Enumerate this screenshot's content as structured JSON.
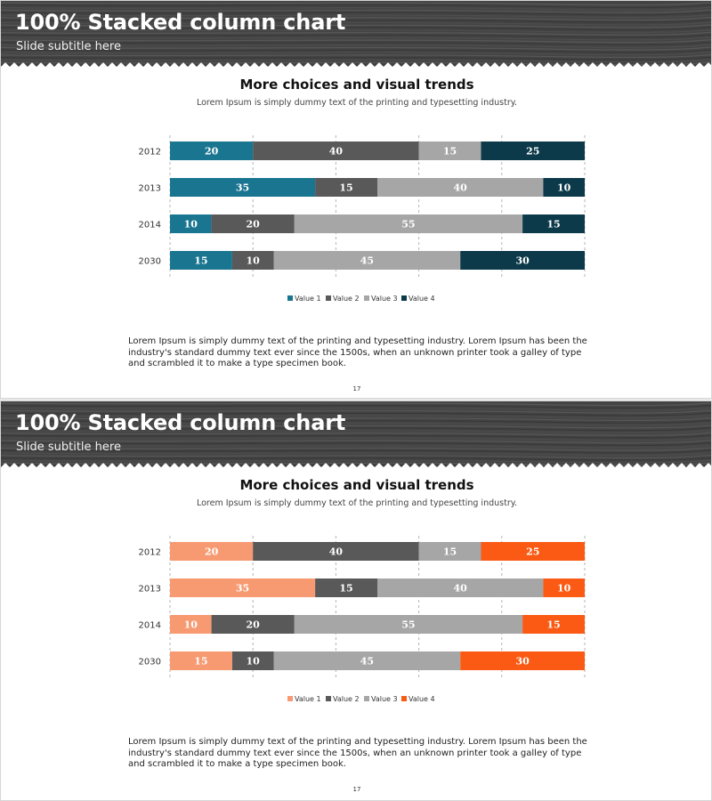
{
  "slides": [
    {
      "header": {
        "title": "100% Stacked column chart",
        "subtitle": "Slide subtitle here"
      },
      "chart_title": "More choices and visual trends",
      "chart_subtitle": "Lorem Ipsum is simply dummy text of the printing and typesetting industry.",
      "body_text": "Lorem Ipsum is simply dummy text of the printing and typesetting industry. Lorem Ipsum has been the industry's standard dummy text ever since the 1500s, when an unknown printer took a galley of type and scrambled it to make a type specimen book.",
      "page_number": "17",
      "colors": [
        "#1a7590",
        "#595959",
        "#a6a6a6",
        "#0c3a4a"
      ]
    },
    {
      "header": {
        "title": "100% Stacked column chart",
        "subtitle": "Slide subtitle here"
      },
      "chart_title": "More choices and visual trends",
      "chart_subtitle": "Lorem Ipsum is simply dummy text of the printing and typesetting industry.",
      "body_text": "Lorem Ipsum is simply dummy text of the printing and typesetting industry. Lorem Ipsum has been the industry's standard dummy text ever since the 1500s, when an unknown printer took a galley of type and scrambled it to make a type specimen book.",
      "page_number": "17",
      "colors": [
        "#f79a72",
        "#595959",
        "#a6a6a6",
        "#fa5a14"
      ]
    }
  ],
  "chart_data": [
    {
      "type": "bar",
      "orientation": "horizontal",
      "stacked": "percent",
      "title": "More choices and visual trends",
      "categories": [
        "2012",
        "2013",
        "2014",
        "2030"
      ],
      "series": [
        {
          "name": "Value 1",
          "values": [
            20,
            35,
            10,
            15
          ]
        },
        {
          "name": "Value 2",
          "values": [
            40,
            15,
            20,
            10
          ]
        },
        {
          "name": "Value 3",
          "values": [
            15,
            40,
            55,
            45
          ]
        },
        {
          "name": "Value 4",
          "values": [
            25,
            10,
            15,
            30
          ]
        }
      ],
      "xlim": [
        0,
        100
      ],
      "grid": "vertical dashed",
      "legend": "bottom"
    },
    {
      "type": "bar",
      "orientation": "horizontal",
      "stacked": "percent",
      "title": "More choices and visual trends",
      "categories": [
        "2012",
        "2013",
        "2014",
        "2030"
      ],
      "series": [
        {
          "name": "Value 1",
          "values": [
            20,
            35,
            10,
            15
          ]
        },
        {
          "name": "Value 2",
          "values": [
            40,
            15,
            20,
            10
          ]
        },
        {
          "name": "Value 3",
          "values": [
            15,
            40,
            55,
            45
          ]
        },
        {
          "name": "Value 4",
          "values": [
            25,
            10,
            15,
            30
          ]
        }
      ],
      "xlim": [
        0,
        100
      ],
      "grid": "vertical dashed",
      "legend": "bottom"
    }
  ]
}
